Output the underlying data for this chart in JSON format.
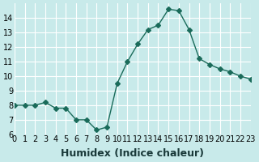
{
  "x": [
    0,
    1,
    2,
    3,
    4,
    5,
    6,
    7,
    8,
    9,
    10,
    11,
    12,
    13,
    14,
    15,
    16,
    17,
    18,
    19,
    20,
    21,
    22,
    23
  ],
  "y": [
    8.0,
    8.0,
    8.0,
    8.2,
    7.8,
    7.8,
    7.0,
    7.0,
    6.3,
    6.5,
    9.5,
    11.0,
    12.2,
    13.2,
    13.5,
    14.6,
    14.5,
    13.2,
    11.2,
    10.8,
    10.5,
    10.3,
    10.0,
    9.8
  ],
  "xlabel": "Humidex (Indice chaleur)",
  "ylim": [
    6,
    15
  ],
  "xlim": [
    0,
    23
  ],
  "yticks": [
    6,
    7,
    8,
    9,
    10,
    11,
    12,
    13,
    14
  ],
  "ytick_labels": [
    "6",
    "7",
    "8",
    "9",
    "10",
    "11",
    "12",
    "13",
    "14"
  ],
  "xticks": [
    0,
    1,
    2,
    3,
    4,
    5,
    6,
    7,
    8,
    9,
    10,
    11,
    12,
    13,
    14,
    15,
    16,
    17,
    18,
    19,
    20,
    21,
    22,
    23
  ],
  "xtick_labels": [
    "0",
    "1",
    "2",
    "3",
    "4",
    "5",
    "6",
    "7",
    "8",
    "9",
    "10",
    "11",
    "12",
    "13",
    "14",
    "15",
    "16",
    "17",
    "18",
    "19",
    "20",
    "21",
    "22",
    "23"
  ],
  "line_color": "#1a6b5a",
  "marker": "D",
  "marker_size": 3,
  "background_color": "#c8eaea",
  "grid_color": "#ffffff",
  "tick_label_fontsize": 7,
  "xlabel_fontsize": 9
}
